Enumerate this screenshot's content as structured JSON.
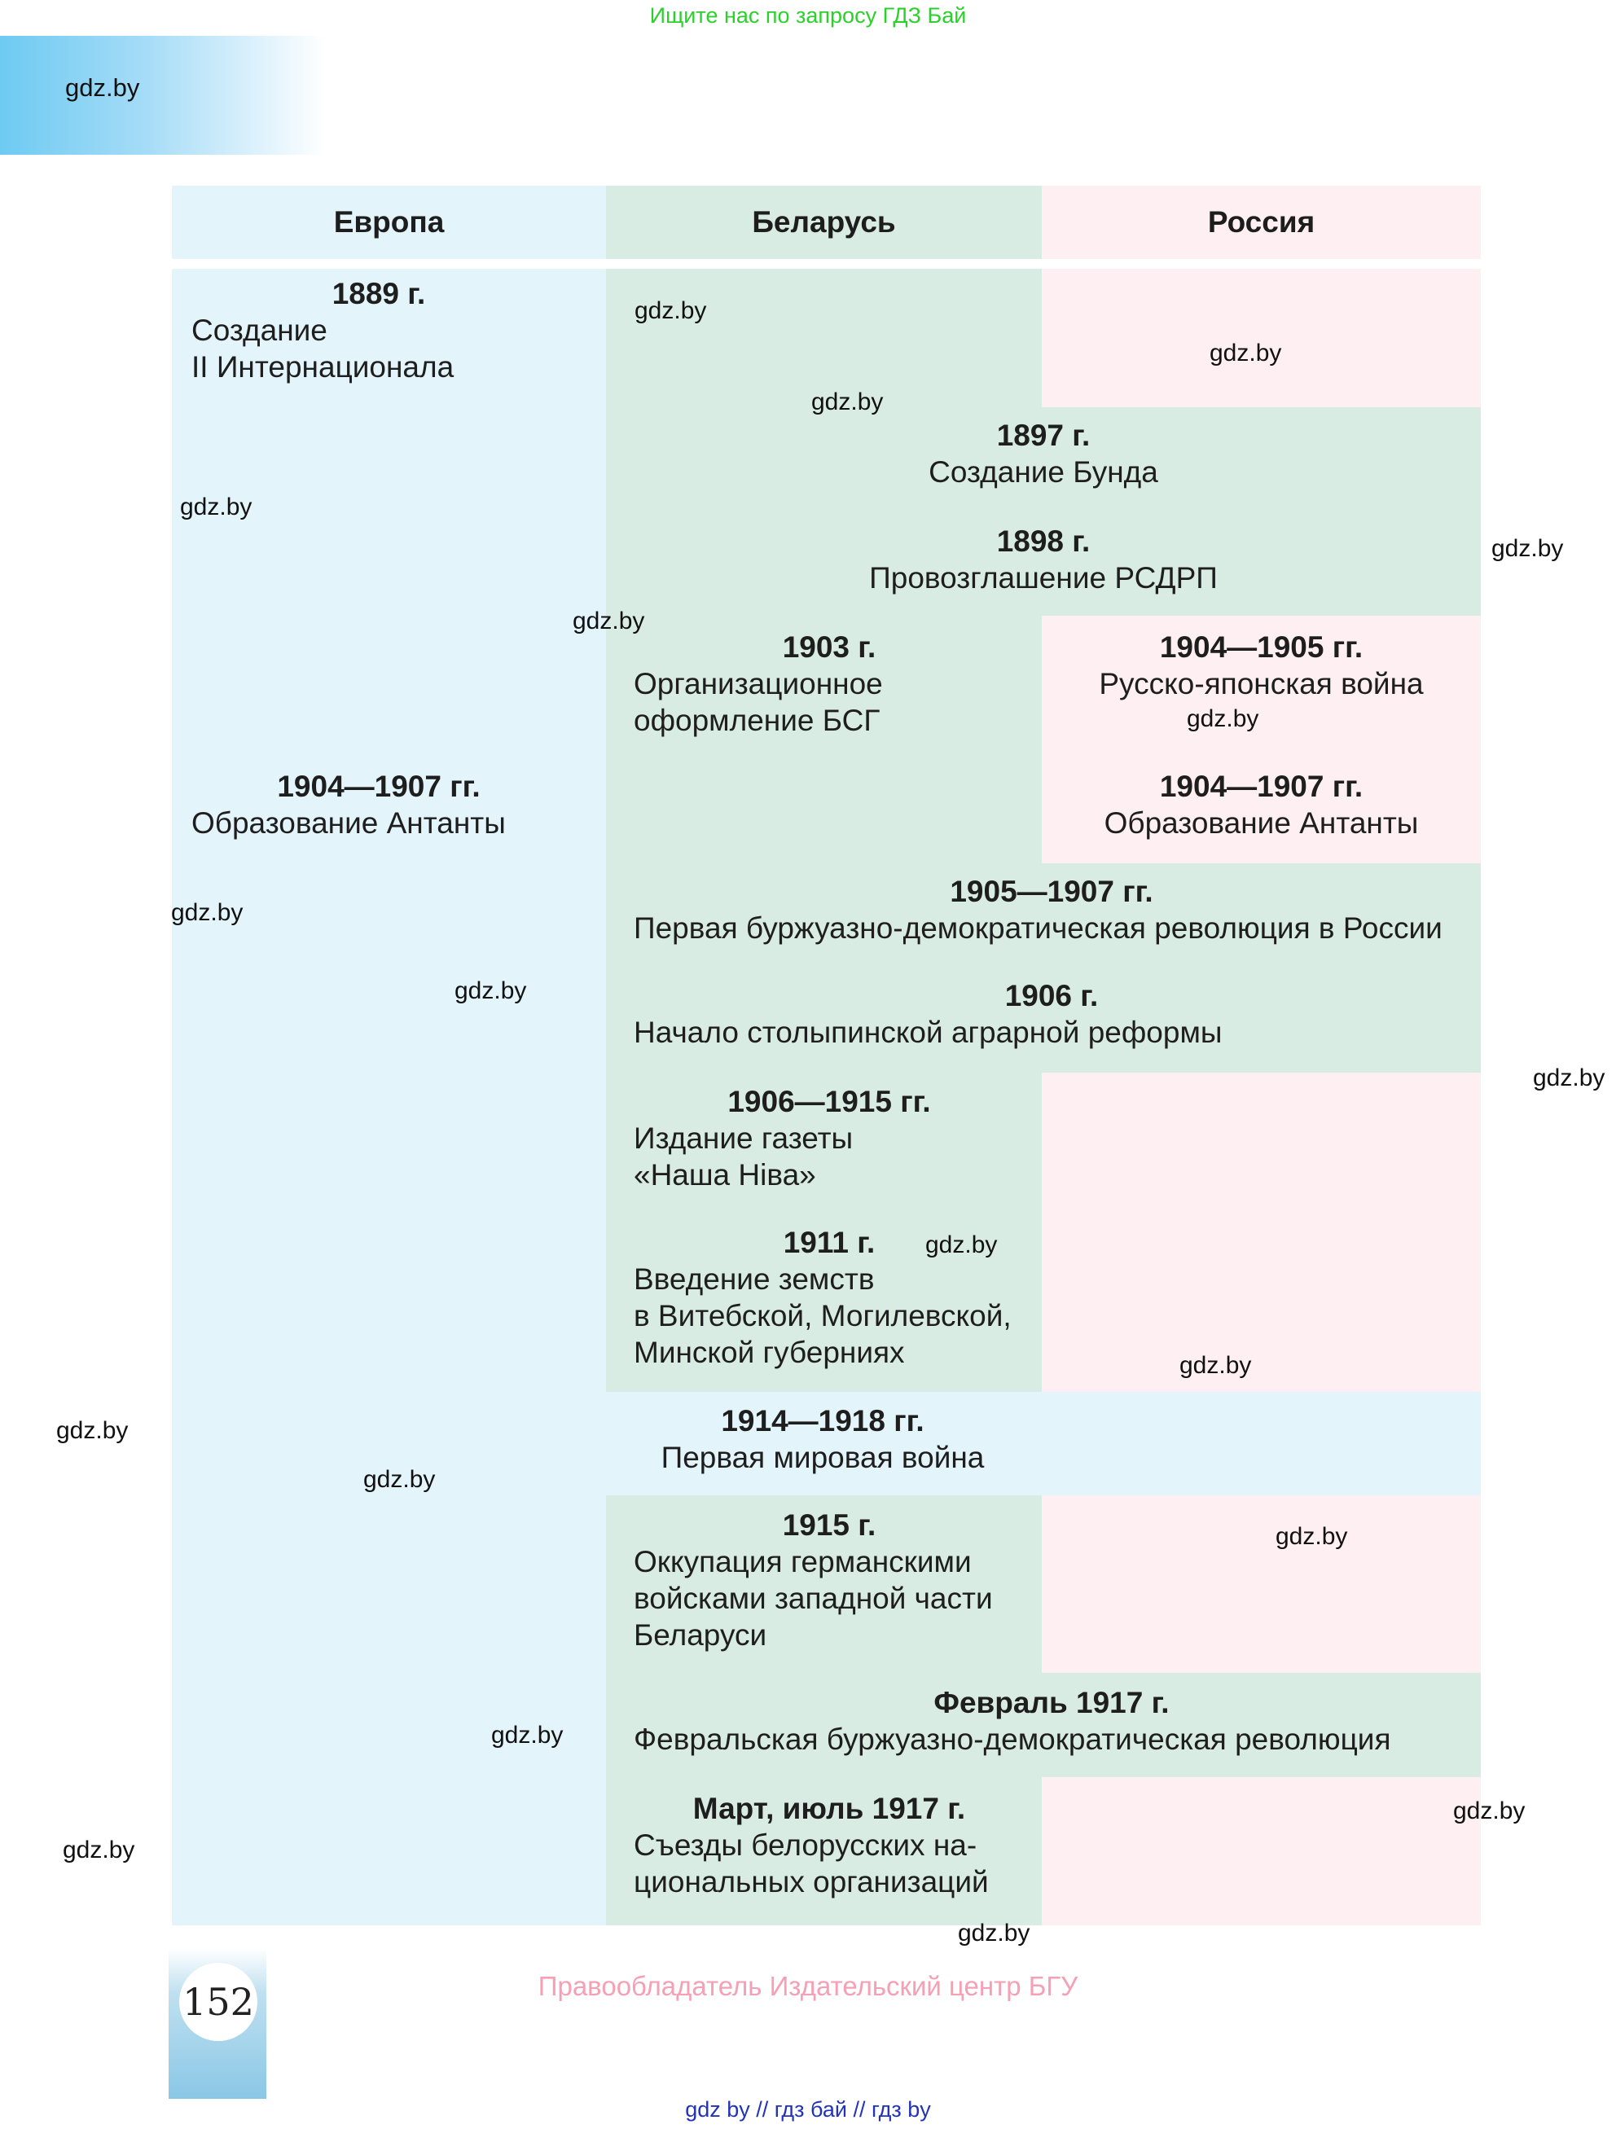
{
  "top_banner": "Ищите нас по запросу ГДЗ Бай",
  "tab_label": "gdz.by",
  "headers": {
    "europe": "Европа",
    "belarus": "Беларусь",
    "russia": "Россия"
  },
  "europe": [
    {
      "year": "1889 г.",
      "text": [
        "Создание",
        "II Интернационала"
      ]
    },
    {
      "year": "1904—1907 гг.",
      "text": [
        "Образование Антанты"
      ]
    }
  ],
  "belarus": [
    {
      "year": "1903 г.",
      "text": [
        "Организационное",
        "оформление БСГ"
      ]
    },
    {
      "year": "1906—1915 гг.",
      "text": [
        "Издание газеты",
        "«Наша Ніва»"
      ]
    },
    {
      "year": "1911 г.",
      "text": [
        "Введение земств",
        "в Витебской, Могилевской,",
        "Минской губерниях"
      ]
    },
    {
      "year": "1915 г.",
      "text": [
        "Оккупация германскими",
        "войсками западной части",
        "Беларуси"
      ]
    },
    {
      "year": "Март, июль 1917 г.",
      "text": [
        "Съезды белорусских на-",
        "циональных организаций"
      ]
    }
  ],
  "russia": [
    {
      "year": "1904—1905 гг.",
      "text": [
        "Русско-японская война"
      ]
    },
    {
      "year": "1904—1907 гг.",
      "text": [
        "Образование Антанты"
      ]
    }
  ],
  "shared_by_ru": [
    {
      "year": "1897 г.",
      "text": [
        "Создание Бунда"
      ]
    },
    {
      "year": "1898 г.",
      "text": [
        "Провозглашение РСДРП"
      ]
    },
    {
      "year": "1905—1907 гг.",
      "text": [
        "Первая буржуазно-демократическая революция в России"
      ]
    },
    {
      "year": "1906 г.",
      "text": [
        "Начало столыпинской аграрной реформы"
      ]
    },
    {
      "year": "Февраль 1917 г.",
      "text": [
        "Февральская буржуазно-демократическая революция"
      ]
    }
  ],
  "shared_all": [
    {
      "year": "1914—1918 гг.",
      "text": [
        "Первая мировая война"
      ]
    }
  ],
  "watermark": "gdz.by",
  "page_number": "152",
  "copyright": "Правообладатель Издательский центр БГУ",
  "bottom_links": "gdz by  //  гдз бай  //  гдз by",
  "colors": {
    "europe_bg": "#e3f4fb",
    "belarus_bg": "#d9ece4",
    "russia_bg": "#feeff3",
    "banner_green": "#2bd12b",
    "rights_pink": "#f5a0b5",
    "links_blue": "#2233bb"
  }
}
